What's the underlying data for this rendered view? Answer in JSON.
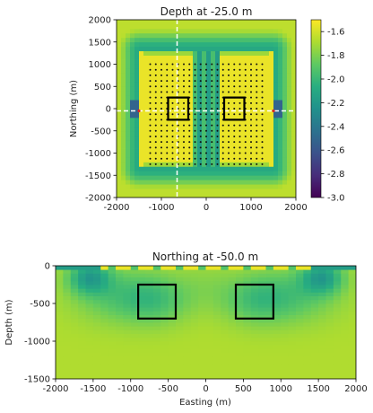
{
  "chart_data": [
    {
      "type": "heatmap",
      "title": "Depth at -25.0 m",
      "xlabel": "",
      "ylabel": "Northing (m)",
      "xlim": [
        -2000,
        2000
      ],
      "ylim": [
        -2000,
        2000
      ],
      "xticks": [
        "-2000",
        "-1000",
        "0",
        "1000",
        "2000"
      ],
      "yticks": [
        "2000",
        "1500",
        "1000",
        "500",
        "0",
        "-500",
        "-1000",
        "-1500",
        "-2000"
      ],
      "colorbar": {
        "min": -3.0,
        "max": -1.5,
        "ticks": [
          "-1.6",
          "-1.8",
          "-2.0",
          "-2.2",
          "-2.4",
          "-2.6",
          "-2.8",
          "-3.0"
        ]
      },
      "boxes": [
        {
          "x": [
            -850,
            -400
          ],
          "y": [
            -250,
            250
          ]
        },
        {
          "x": [
            400,
            850
          ],
          "y": [
            -250,
            250
          ]
        }
      ],
      "profile_line_northing": -50,
      "vertical_line_easting": -650,
      "station_grid": {
        "x": [
          -1250,
          1250
        ],
        "y": [
          -1250,
          1000
        ],
        "step": 125
      }
    },
    {
      "type": "heatmap",
      "title": "Northing at -50.0 m",
      "xlabel": "Easting (m)",
      "ylabel": "Depth (m)",
      "xlim": [
        -2000,
        2000
      ],
      "ylim": [
        -1500,
        0
      ],
      "xticks": [
        "-2000",
        "-1500",
        "-1000",
        "-500",
        "0",
        "500",
        "1000",
        "1500",
        "2000"
      ],
      "yticks": [
        "0",
        "-500",
        "-1000",
        "-1500"
      ],
      "boxes": [
        {
          "x": [
            -900,
            -400
          ],
          "y": [
            -700,
            -250
          ]
        },
        {
          "x": [
            400,
            900
          ],
          "y": [
            -700,
            -250
          ]
        }
      ]
    }
  ]
}
